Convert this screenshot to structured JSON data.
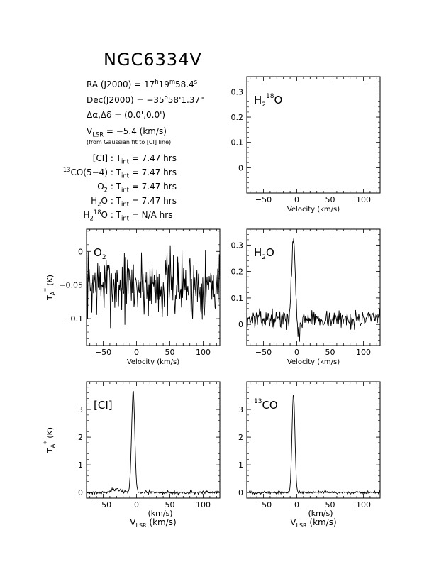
{
  "header": {
    "source": "NGC6334V",
    "ra": {
      "label": "RA (J2000) = 17",
      "h": "h",
      "m_val": "19",
      "m": "m",
      "s_val": "58.4",
      "s": "s"
    },
    "dec": {
      "label": "Dec(J2000) = −35",
      "deg": "o",
      "rest": "58'1.37\""
    },
    "offset": {
      "text": "Δα,Δδ = (0.0',0.0')"
    },
    "vlsr": {
      "v": "V",
      "sub": "LSR",
      "rest": " = −5.4 (km/s)"
    },
    "vlsr_note": "(from Gaussian fit to [CI] line)",
    "integrations": [
      {
        "pre": "",
        "sup": "",
        "name": "[CI]",
        "sub": "",
        "sup2": "",
        "tail": "",
        "tint": "T",
        "tint_sub": "int",
        "value": " = 7.47 hrs"
      },
      {
        "pre": "",
        "sup": "13",
        "name": "CO(5−4)",
        "sub": "",
        "sup2": "",
        "tail": "",
        "tint": "T",
        "tint_sub": "int",
        "value": " = 7.47 hrs"
      },
      {
        "pre": "",
        "sup": "",
        "name": "O",
        "sub": "2",
        "sup2": "",
        "tail": "",
        "tint": "T",
        "tint_sub": "int",
        "value": " = 7.47 hrs"
      },
      {
        "pre": "",
        "sup": "",
        "name": "H",
        "sub": "2",
        "sup2": "",
        "tail": "O",
        "tint": "T",
        "tint_sub": "int",
        "value": " = 7.47 hrs"
      },
      {
        "pre": "",
        "sup": "",
        "name": "H",
        "sub": "2",
        "sup2": "18",
        "tail": "O",
        "tint": "T",
        "tint_sub": "int",
        "value": " = N/A hrs"
      }
    ]
  },
  "chart_data": [
    {
      "id": "h218o",
      "type": "line",
      "label": "H",
      "label_sub": "2",
      "label_sup": "18",
      "label_tail": "O",
      "xlim": [
        -75,
        125
      ],
      "ylim": [
        -0.1,
        0.36
      ],
      "xticks": [
        -50,
        0,
        50,
        100
      ],
      "xtick_labels": [
        "−50",
        "0",
        "50",
        "100"
      ],
      "yticks": [
        0,
        0.1,
        0.2,
        0.3
      ],
      "ytick_labels": [
        "0",
        "0.1",
        "0.2",
        "0.3"
      ],
      "xlabel": "Velocity (km/s)",
      "ylabel": "",
      "values": []
    },
    {
      "id": "o2",
      "type": "line",
      "label": "O",
      "label_sub": "2",
      "label_sup": "",
      "label_tail": "",
      "xlim": [
        -75,
        125
      ],
      "ylim": [
        -0.14,
        0.033
      ],
      "xticks": [
        -50,
        0,
        50,
        100
      ],
      "xtick_labels": [
        "−50",
        "0",
        "50",
        "100"
      ],
      "yticks": [
        0,
        -0.05,
        -0.1
      ],
      "ytick_labels": [
        "0",
        "−0.05",
        "−0.1"
      ],
      "xlabel": "Velocity (km/s)",
      "ylabel": "T",
      "ylabel_sub": "A",
      "ylabel_sup": "*",
      "ylabel_unit": " (K)",
      "baseline": -0.05,
      "noise": 0.025,
      "seed": 7,
      "features": []
    },
    {
      "id": "h2o",
      "type": "line",
      "label": "H",
      "label_sub": "2",
      "label_sup": "",
      "label_tail": "O",
      "xlim": [
        -75,
        125
      ],
      "ylim": [
        -0.08,
        0.36
      ],
      "xticks": [
        -50,
        0,
        50,
        100
      ],
      "xtick_labels": [
        "−50",
        "0",
        "50",
        "100"
      ],
      "yticks": [
        0,
        0.1,
        0.2,
        0.3
      ],
      "ytick_labels": [
        "0",
        "0.1",
        "0.2",
        "0.3"
      ],
      "xlabel": "Velocity (km/s)",
      "ylabel": "",
      "baseline": 0.02,
      "noise": 0.016,
      "seed": 13,
      "features": [
        {
          "center": -5,
          "amp": 0.31,
          "width": 2.6
        },
        {
          "center": 3,
          "amp": -0.07,
          "width": 2.0
        }
      ]
    },
    {
      "id": "ci",
      "type": "line",
      "label": "[CI]",
      "label_sub": "",
      "label_sup": "",
      "label_tail": "",
      "xlim": [
        -75,
        125
      ],
      "ylim": [
        -0.2,
        4.0
      ],
      "xticks": [
        -50,
        0,
        50,
        100
      ],
      "xtick_labels": [
        "−50",
        "0",
        "50",
        "100"
      ],
      "yticks": [
        0,
        1,
        2,
        3
      ],
      "ytick_labels": [
        "0",
        "1",
        "2",
        "3"
      ],
      "xlabel": "V",
      "xlabel_sub": "LSR",
      "xlabel_tail": " (km/s)",
      "ylabel": "T",
      "ylabel_sub": "A",
      "ylabel_sup": "*",
      "ylabel_unit": " (K)",
      "baseline": 0.0,
      "noise": 0.03,
      "seed": 21,
      "features": [
        {
          "center": -5,
          "amp": 3.65,
          "width": 2.4
        },
        {
          "center": -30,
          "amp": 0.12,
          "width": 8
        }
      ]
    },
    {
      "id": "13co",
      "type": "line",
      "label": "CO",
      "label_sub": "",
      "label_sup": "13",
      "label_tail": "",
      "label_presup": true,
      "xlim": [
        -75,
        125
      ],
      "ylim": [
        -0.2,
        4.0
      ],
      "xticks": [
        -50,
        0,
        50,
        100
      ],
      "xtick_labels": [
        "−50",
        "0",
        "50",
        "100"
      ],
      "yticks": [
        0,
        1,
        2,
        3
      ],
      "ytick_labels": [
        "0",
        "1",
        "2",
        "3"
      ],
      "xlabel": "V",
      "xlabel_sub": "LSR",
      "xlabel_tail": " (km/s)",
      "ylabel": "",
      "baseline": 0.0,
      "noise": 0.025,
      "seed": 33,
      "features": [
        {
          "center": -5,
          "amp": 3.6,
          "width": 2.2
        }
      ]
    }
  ]
}
